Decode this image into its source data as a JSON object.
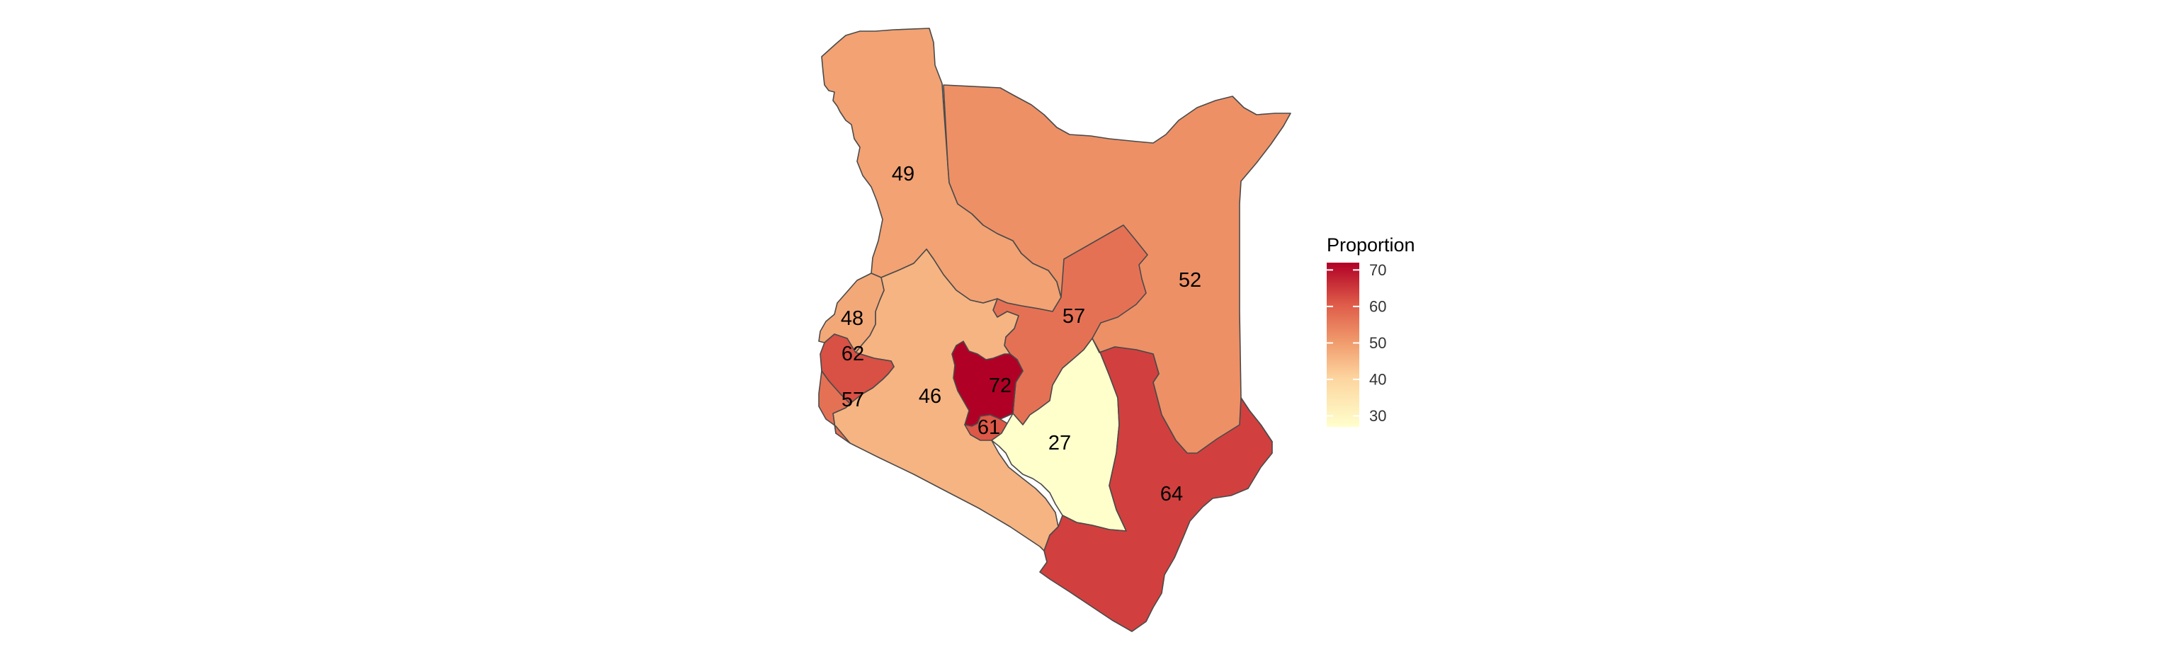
{
  "legend": {
    "title": "Proportion",
    "ticks": [
      30,
      40,
      50,
      60,
      70
    ],
    "range": [
      27,
      72
    ],
    "colors": {
      "low": "#ffffcc",
      "mid_low": "#fdd49e",
      "mid": "#f09a6c",
      "mid_high": "#de5a48",
      "high": "#b10026"
    }
  },
  "regions": [
    {
      "id": "turkana",
      "value": 49,
      "label": "49"
    },
    {
      "id": "north-east",
      "value": 52,
      "label": "52"
    },
    {
      "id": "rift-valley-central",
      "value": 46,
      "label": "46"
    },
    {
      "id": "west-north",
      "value": 48,
      "label": "48"
    },
    {
      "id": "west-middle",
      "value": 62,
      "label": "62"
    },
    {
      "id": "west-south",
      "value": 57,
      "label": "57"
    },
    {
      "id": "east-central",
      "value": 57,
      "label": "57"
    },
    {
      "id": "central-north",
      "value": 72,
      "label": "72"
    },
    {
      "id": "central-south",
      "value": 61,
      "label": "61"
    },
    {
      "id": "eastern",
      "value": 27,
      "label": "27"
    },
    {
      "id": "coast",
      "value": 64,
      "label": "64"
    }
  ]
}
